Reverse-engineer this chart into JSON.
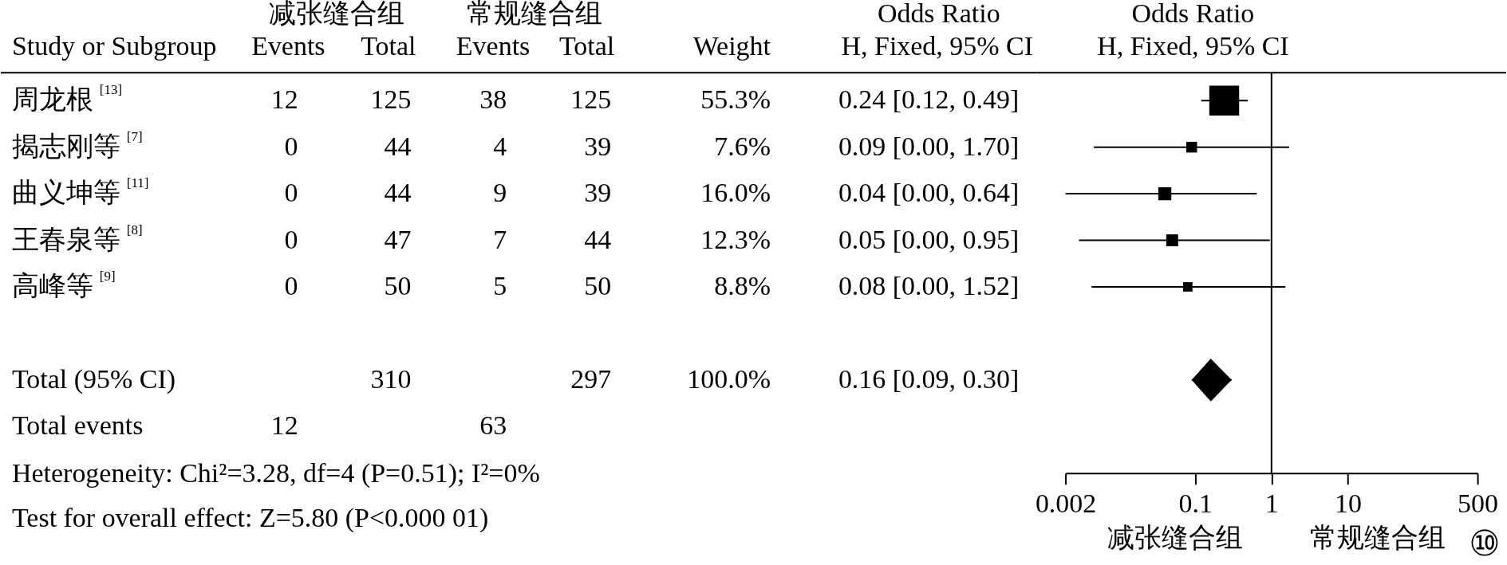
{
  "chart_data": [
    {
      "type": "other",
      "categories": [
        "周龙根$^{[13]}$",
        "揭志刚等$^{[7]}$",
        "曲义坤等$^{[11]}$",
        "王春泉等$^{[8]}$",
        "高峰等$^{[9]}$",
        null,
        "Total (95% CI)",
        "Total events"
      ],
      "series": [
        {
          "name": "Events",
          "values": [
            12,
            0,
            0,
            0,
            0,
            null,
            null,
            12
          ]
        },
        {
          "name": "Total",
          "values": [
            125,
            44,
            44,
            47,
            50,
            null,
            310,
            null
          ]
        },
        {
          "name": "Events",
          "values": [
            38,
            4,
            9,
            7,
            5,
            null,
            null,
            63
          ]
        },
        {
          "name": "Total",
          "values": [
            125,
            39,
            39,
            44,
            50,
            null,
            297,
            null
          ]
        },
        {
          "name": "Weight",
          "values": [
            55.3,
            7.6,
            16.0,
            12.3,
            8.8,
            null,
            100.0,
            null
          ],
          "value_labels": [
            "55.3%",
            "7.6%",
            "16.0%",
            "12.3%",
            "8.8%",
            null,
            "100.0%",
            null
          ]
        },
        {
          "values": [
            0.24,
            0.09,
            0.04,
            0.05,
            0.08,
            null,
            0.16,
            null
          ],
          "value_labels": [
            "0.24 [0.12, 0.49]",
            "0.09 [0.00, 1.70]",
            "0.04 [0.00, 0.64]",
            "0.05 [0.00, 0.95]",
            "0.08 [0.00, 1.52]",
            null,
            "0.16 [0.09, 0.30]",
            null
          ]
        }
      ],
      "data_labels": true,
      "annotations": [
        "减张缝合组",
        "常规缝合组",
        "Study or Subgroup",
        "Odds Ratio",
        "H, Fixed, 95% CI",
        "Heterogeneity: Chi²=3.28, df=4 (P=0.51); I²=0%",
        "Test for overall effect: Z=5.80 (P<0.000 01)"
      ]
    },
    {
      "type": "scatter",
      "orientation": "horizontal",
      "title": "Odds Ratio",
      "subtitle": "H, Fixed, 95% CI",
      "categories": [
        null,
        null,
        null,
        null,
        null,
        null,
        null,
        null
      ],
      "series": [
        {
          "marker": "square",
          "color": "#000000",
          "values": [
            0.24,
            0.09,
            0.04,
            0.05,
            0.08,
            null,
            null,
            null
          ],
          "errors": [
            [
              0.12,
              0.49
            ],
            [
              0.0047,
              1.7
            ],
            [
              0.002,
              0.64
            ],
            [
              0.003,
              0.95
            ],
            [
              0.0044,
              1.52
            ],
            null,
            null,
            null
          ],
          "sizes": [
            1,
            0.13,
            0.19,
            0.16,
            0.1,
            null,
            null,
            null
          ]
        },
        {
          "marker": "diamond",
          "color": "#000000",
          "values": [
            null,
            null,
            null,
            null,
            null,
            null,
            0.16,
            null
          ],
          "errors": [
            null,
            null,
            null,
            null,
            null,
            null,
            [
              0.09,
              0.3
            ],
            null
          ]
        }
      ],
      "log": "x",
      "xlim": [
        0.002,
        500
      ],
      "xticks": [
        0.002,
        0.1,
        1,
        10,
        500
      ],
      "tick_labels": "x",
      "ref_lines": [
        {
          "axis": "x",
          "value": 1,
          "color": "#000000"
        }
      ],
      "annotations": [
        "减张缝合组",
        "常规缝合组",
        "⑩"
      ]
    }
  ]
}
